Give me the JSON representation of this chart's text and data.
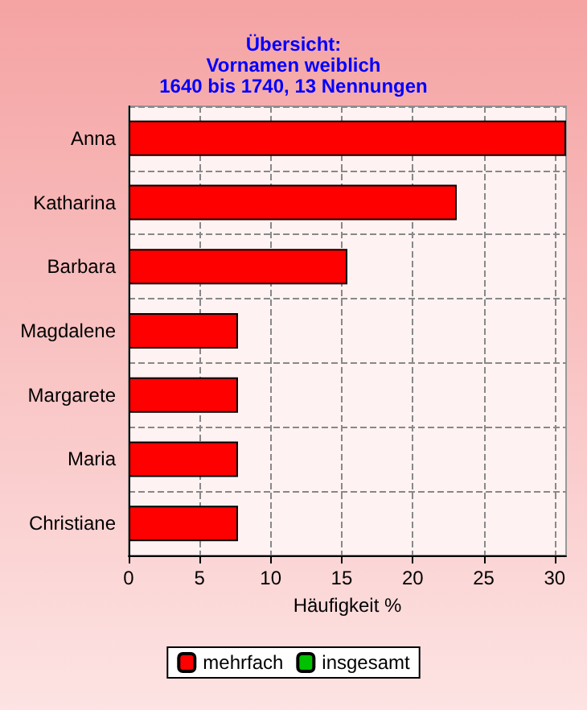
{
  "chart_data": {
    "type": "bar",
    "orientation": "horizontal",
    "title": "Übersicht:\nVornamen weiblich\n1640 bis 1740, 13 Nennungen",
    "xlabel": "Häufigkeit %",
    "categories": [
      "Anna",
      "Katharina",
      "Barbara",
      "Magdalene",
      "Margarete",
      "Maria",
      "Christiane"
    ],
    "series": [
      {
        "name": "mehrfach",
        "color": "#ff0000",
        "values": [
          30.8,
          23.1,
          15.4,
          7.7,
          7.7,
          7.7,
          7.7
        ]
      },
      {
        "name": "insgesamt",
        "color": "#00c000",
        "values": [
          null,
          null,
          null,
          null,
          null,
          null,
          null
        ]
      }
    ],
    "xlim": [
      0,
      30.8
    ],
    "xticks": [
      0,
      5,
      10,
      15,
      20,
      25,
      30
    ],
    "grid": true,
    "legend": "bottom"
  }
}
